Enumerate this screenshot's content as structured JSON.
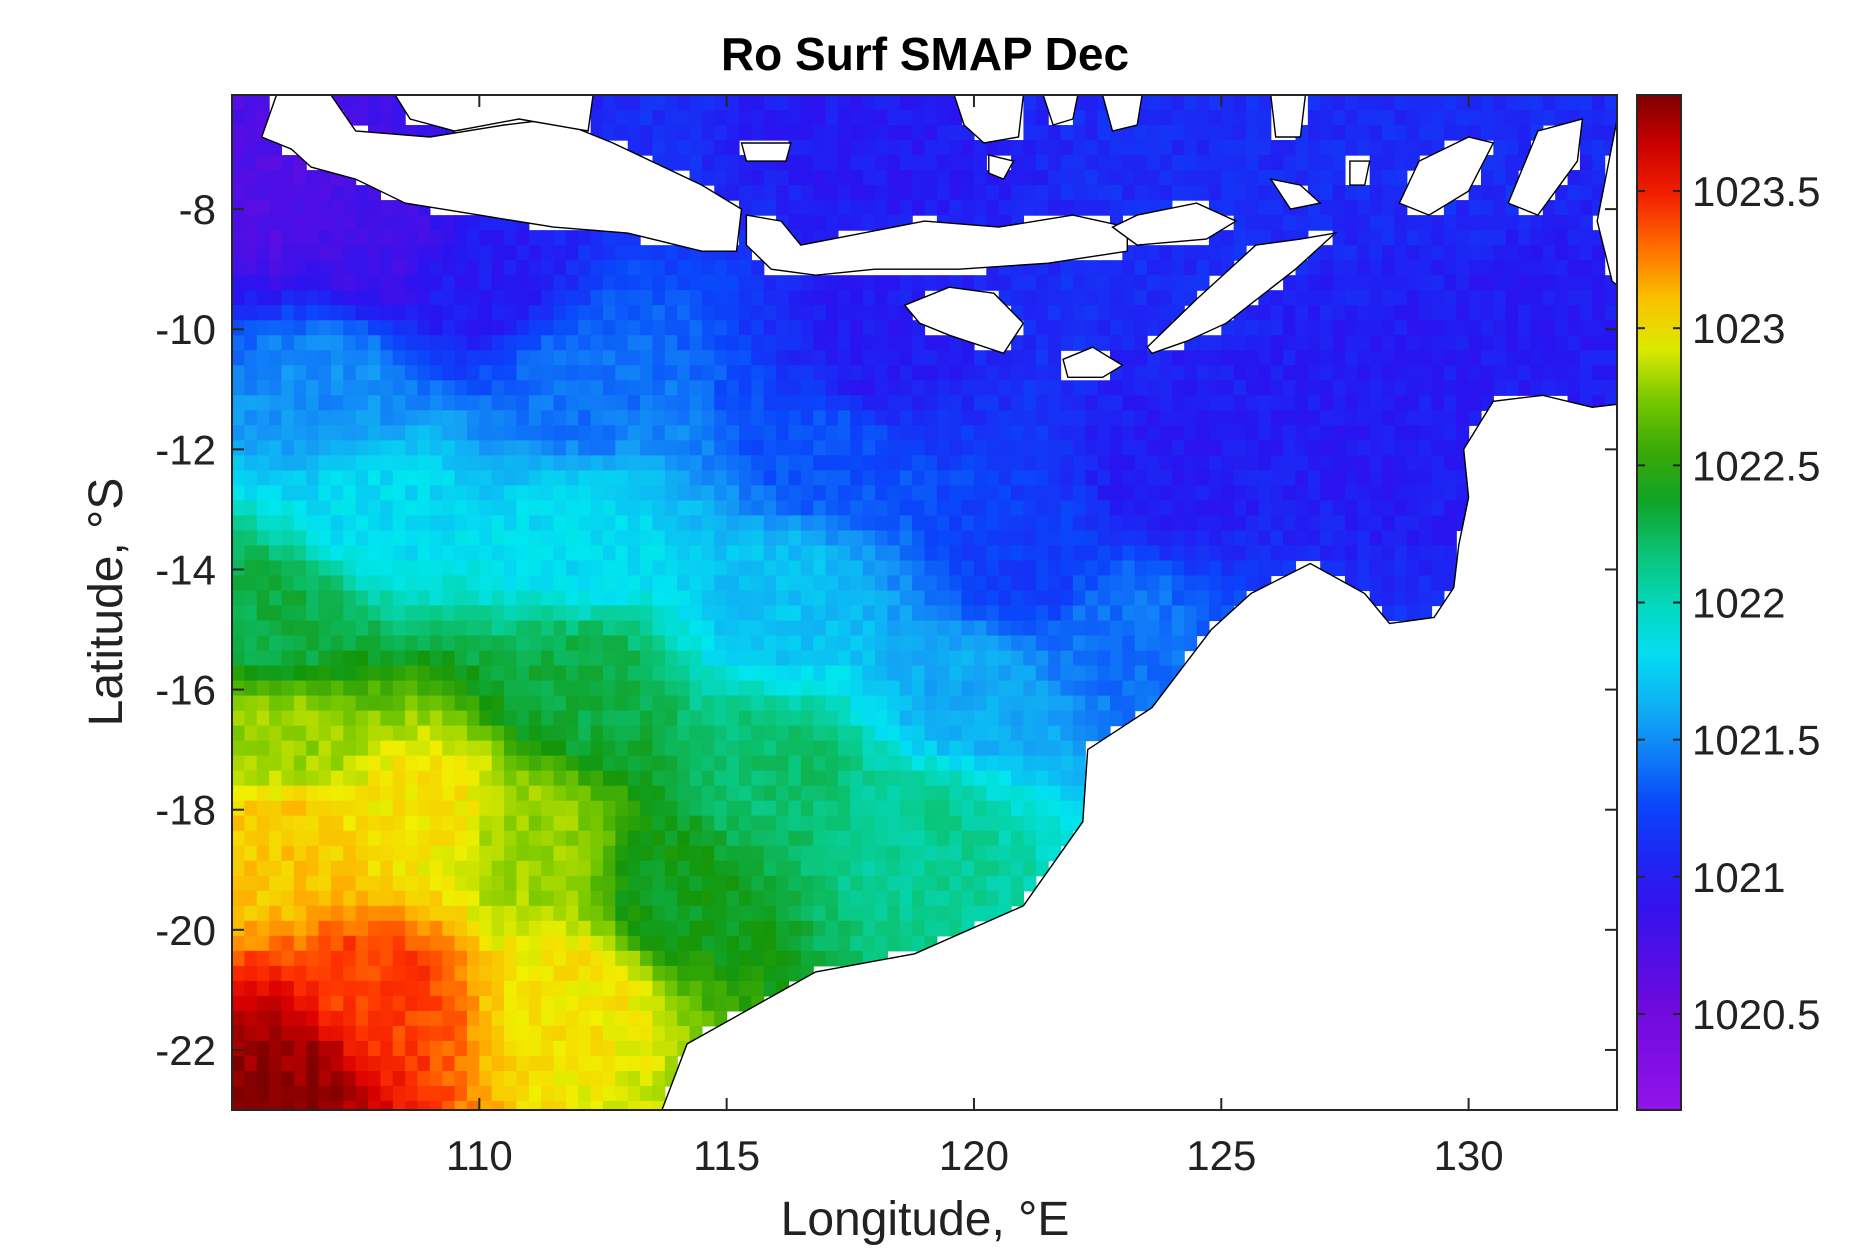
{
  "chart_data": {
    "type": "heatmap",
    "title": "Ro Surf SMAP Dec",
    "xlabel": "Longitude, °E",
    "ylabel": "Latitude, °S",
    "xlim": [
      105,
      133
    ],
    "ylim": [
      -23,
      -6.1
    ],
    "x_ticks": [
      110,
      115,
      120,
      125,
      130
    ],
    "x_tick_labels": [
      "110",
      "115",
      "120",
      "125",
      "130"
    ],
    "y_ticks": [
      -8,
      -10,
      -12,
      -14,
      -16,
      -18,
      -20,
      -22
    ],
    "y_tick_labels": [
      "-8",
      "-10",
      "-12",
      "-14",
      "-16",
      "-18",
      "-20",
      "-22"
    ],
    "colorbar": {
      "range": [
        1020.15,
        1023.85
      ],
      "ticks": [
        1020.5,
        1021,
        1021.5,
        1022,
        1022.5,
        1023,
        1023.5
      ],
      "tick_labels": [
        "1020.5",
        "1021",
        "1021.5",
        "1022",
        "1022.5",
        "1023",
        "1023.5"
      ],
      "colormap": "jet-like (violet to dark red)"
    },
    "grid_resolution_deg": 0.25,
    "value_anchors": [
      {
        "lon": 106.0,
        "lat": -22.5,
        "value": 1023.8
      },
      {
        "lon": 108.0,
        "lat": -21.0,
        "value": 1023.4
      },
      {
        "lon": 106.0,
        "lat": -18.5,
        "value": 1023.1
      },
      {
        "lon": 106.0,
        "lat": -16.8,
        "value": 1022.8
      },
      {
        "lon": 109.0,
        "lat": -18.0,
        "value": 1023.0
      },
      {
        "lon": 111.0,
        "lat": -18.5,
        "value": 1022.8
      },
      {
        "lon": 112.0,
        "lat": -21.0,
        "value": 1023.0
      },
      {
        "lon": 106.0,
        "lat": -15.0,
        "value": 1022.3
      },
      {
        "lon": 112.0,
        "lat": -16.0,
        "value": 1022.3
      },
      {
        "lon": 116.0,
        "lat": -17.5,
        "value": 1022.2
      },
      {
        "lon": 119.0,
        "lat": -18.5,
        "value": 1022.1
      },
      {
        "lon": 114.0,
        "lat": -19.5,
        "value": 1022.4
      },
      {
        "lon": 108.0,
        "lat": -13.0,
        "value": 1021.8
      },
      {
        "lon": 112.0,
        "lat": -13.5,
        "value": 1021.8
      },
      {
        "lon": 116.0,
        "lat": -14.5,
        "value": 1021.7
      },
      {
        "lon": 120.0,
        "lat": -16.0,
        "value": 1021.6
      },
      {
        "lon": 107.0,
        "lat": -11.0,
        "value": 1021.5
      },
      {
        "lon": 112.0,
        "lat": -11.0,
        "value": 1021.4
      },
      {
        "lon": 117.0,
        "lat": -12.0,
        "value": 1021.3
      },
      {
        "lon": 121.0,
        "lat": -14.0,
        "value": 1021.2
      },
      {
        "lon": 123.0,
        "lat": -15.0,
        "value": 1021.4
      },
      {
        "lon": 110.0,
        "lat": -9.2,
        "value": 1021.0
      },
      {
        "lon": 118.0,
        "lat": -10.5,
        "value": 1021.0
      },
      {
        "lon": 124.0,
        "lat": -12.5,
        "value": 1021.0
      },
      {
        "lon": 128.0,
        "lat": -11.5,
        "value": 1021.0
      },
      {
        "lon": 131.0,
        "lat": -9.5,
        "value": 1021.0
      },
      {
        "lon": 106.0,
        "lat": -7.8,
        "value": 1020.7
      },
      {
        "lon": 108.0,
        "lat": -8.5,
        "value": 1020.8
      },
      {
        "lon": 118.0,
        "lat": -6.8,
        "value": 1021.0
      },
      {
        "lon": 125.0,
        "lat": -7.0,
        "value": 1021.1
      },
      {
        "lon": 130.0,
        "lat": -7.5,
        "value": 1021.1
      }
    ]
  }
}
